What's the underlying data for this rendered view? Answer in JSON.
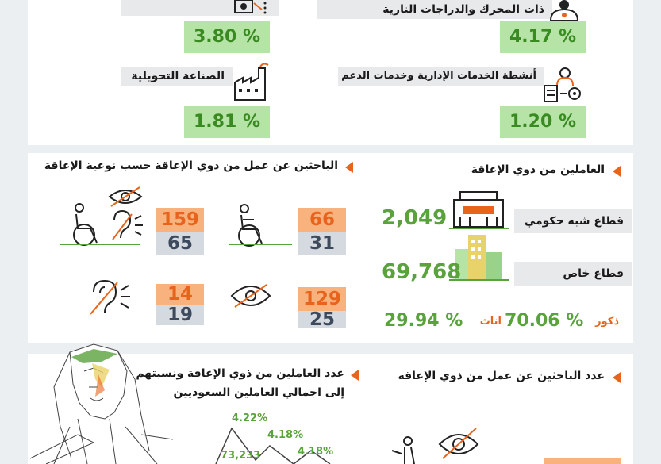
{
  "top": {
    "left_card": {
      "percent": "3.80 %"
    },
    "right_card": {
      "label": "ذات المحرك   والدراجات النارية",
      "percent": "4.17 %"
    },
    "manufacturing": {
      "label": "الصناعة التحويلية",
      "percent": "1.81 %"
    },
    "admin_services": {
      "label": "أنشطة الخدمات الإدارية وخدمات الدعم",
      "percent": "1.20 %"
    }
  },
  "job_seekers_by_disability": {
    "title": "الباحثين عن عمل من ذوي الإعاقة حسب نوعية الإعاقة",
    "cells": [
      {
        "top": "66",
        "bottom": "31",
        "icon": "wheelchair-icon"
      },
      {
        "top": "159",
        "bottom": "65",
        "icon": "wheelchair-multiple-icon"
      },
      {
        "top": "129",
        "bottom": "25",
        "icon": "eye-icon"
      },
      {
        "top": "14",
        "bottom": "19",
        "icon": "ear-icon"
      }
    ]
  },
  "employed_disabled": {
    "title": "العاملين من ذوي الإعاقة",
    "semi_government": {
      "label": "قطاع شبه حكومي",
      "value": "2,049"
    },
    "private": {
      "label": "قطاع خاص",
      "value": "69,768"
    },
    "males": {
      "label": "ذكور",
      "percent": "70.06 %"
    },
    "females": {
      "label": "اناث",
      "percent": "29.94 %"
    }
  },
  "bottom": {
    "left_title_1": "عدد العاملين من ذوي الإعاقة ونسبتهم",
    "left_title_2": "إلى اجمالي العاملين السعوديين",
    "right_title": "عدد الباحثين عن عمل من ذوي الإعاقة",
    "chart_data": {
      "type": "line",
      "labels": [
        "4.22%",
        "4.18%",
        "73,233",
        "4.18%"
      ]
    }
  },
  "colors": {
    "accent_orange": "#e8641c",
    "green": "#5aa23c",
    "light_green": "#b6e3a6"
  }
}
